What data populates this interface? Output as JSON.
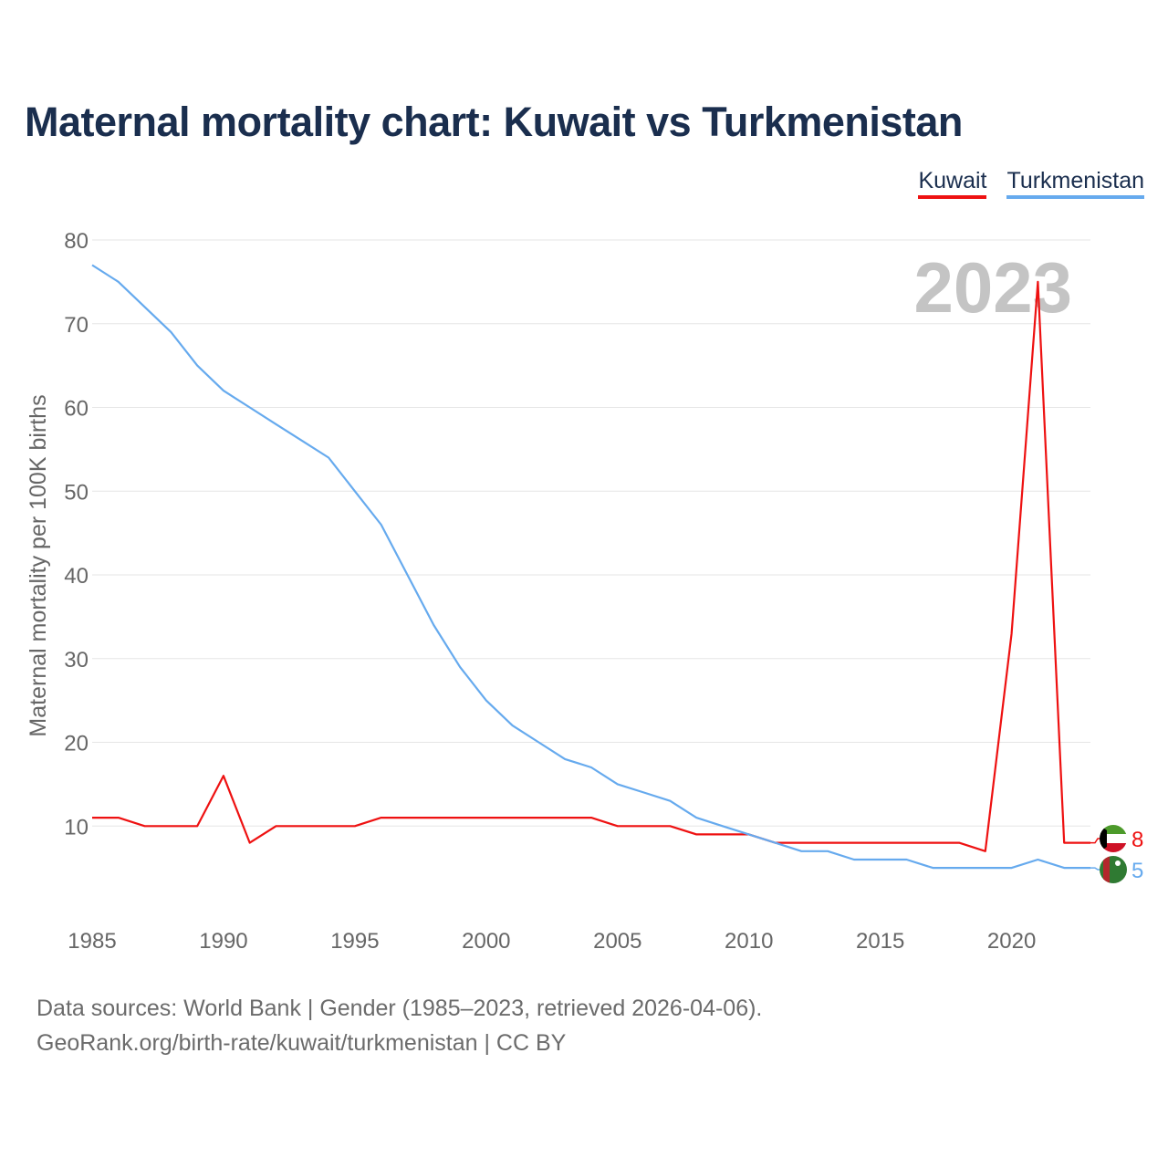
{
  "title": "Maternal mortality chart: Kuwait vs Turkmenistan",
  "legend": [
    {
      "label": "Kuwait",
      "color": "#ee1111"
    },
    {
      "label": "Turkmenistan",
      "color": "#66aaee"
    }
  ],
  "sources": {
    "line1": "Data sources: World Bank | Gender (1985–2023, retrieved 2026-04-06).",
    "line2": "GeoRank.org/birth-rate/kuwait/turkmenistan | CC BY"
  },
  "chart_data": {
    "type": "line",
    "title": "Maternal mortality chart: Kuwait vs Turkmenistan",
    "xlabel": "",
    "ylabel": "Maternal mortality per 100K births",
    "xlim": [
      1985,
      2023
    ],
    "ylim": [
      0,
      80
    ],
    "yticks": [
      10,
      20,
      30,
      40,
      50,
      60,
      70,
      80
    ],
    "xticks": [
      1985,
      1990,
      1995,
      2000,
      2005,
      2010,
      2015,
      2020
    ],
    "grid": true,
    "year_label": "2023",
    "x": [
      1985,
      1986,
      1987,
      1988,
      1989,
      1990,
      1991,
      1992,
      1993,
      1994,
      1995,
      1996,
      1997,
      1998,
      1999,
      2000,
      2001,
      2002,
      2003,
      2004,
      2005,
      2006,
      2007,
      2008,
      2009,
      2010,
      2011,
      2012,
      2013,
      2014,
      2015,
      2016,
      2017,
      2018,
      2019,
      2020,
      2021,
      2022,
      2023
    ],
    "series": [
      {
        "name": "Kuwait",
        "color": "#ee1111",
        "end_label": "8",
        "flag": "kuwait-flag-icon",
        "values": [
          11,
          11,
          10,
          10,
          10,
          16,
          8,
          10,
          10,
          10,
          10,
          11,
          11,
          11,
          11,
          11,
          11,
          11,
          11,
          11,
          10,
          10,
          10,
          9,
          9,
          9,
          8,
          8,
          8,
          8,
          8,
          8,
          8,
          8,
          7,
          33,
          75,
          8,
          8
        ]
      },
      {
        "name": "Turkmenistan",
        "color": "#66aaee",
        "end_label": "5",
        "flag": "turkmenistan-flag-icon",
        "values": [
          77,
          75,
          72,
          69,
          65,
          62,
          60,
          58,
          56,
          54,
          50,
          46,
          40,
          34,
          29,
          25,
          22,
          20,
          18,
          17,
          15,
          14,
          13,
          11,
          10,
          9,
          8,
          7,
          7,
          6,
          6,
          6,
          5,
          5,
          5,
          5,
          6,
          5,
          5
        ]
      }
    ]
  }
}
